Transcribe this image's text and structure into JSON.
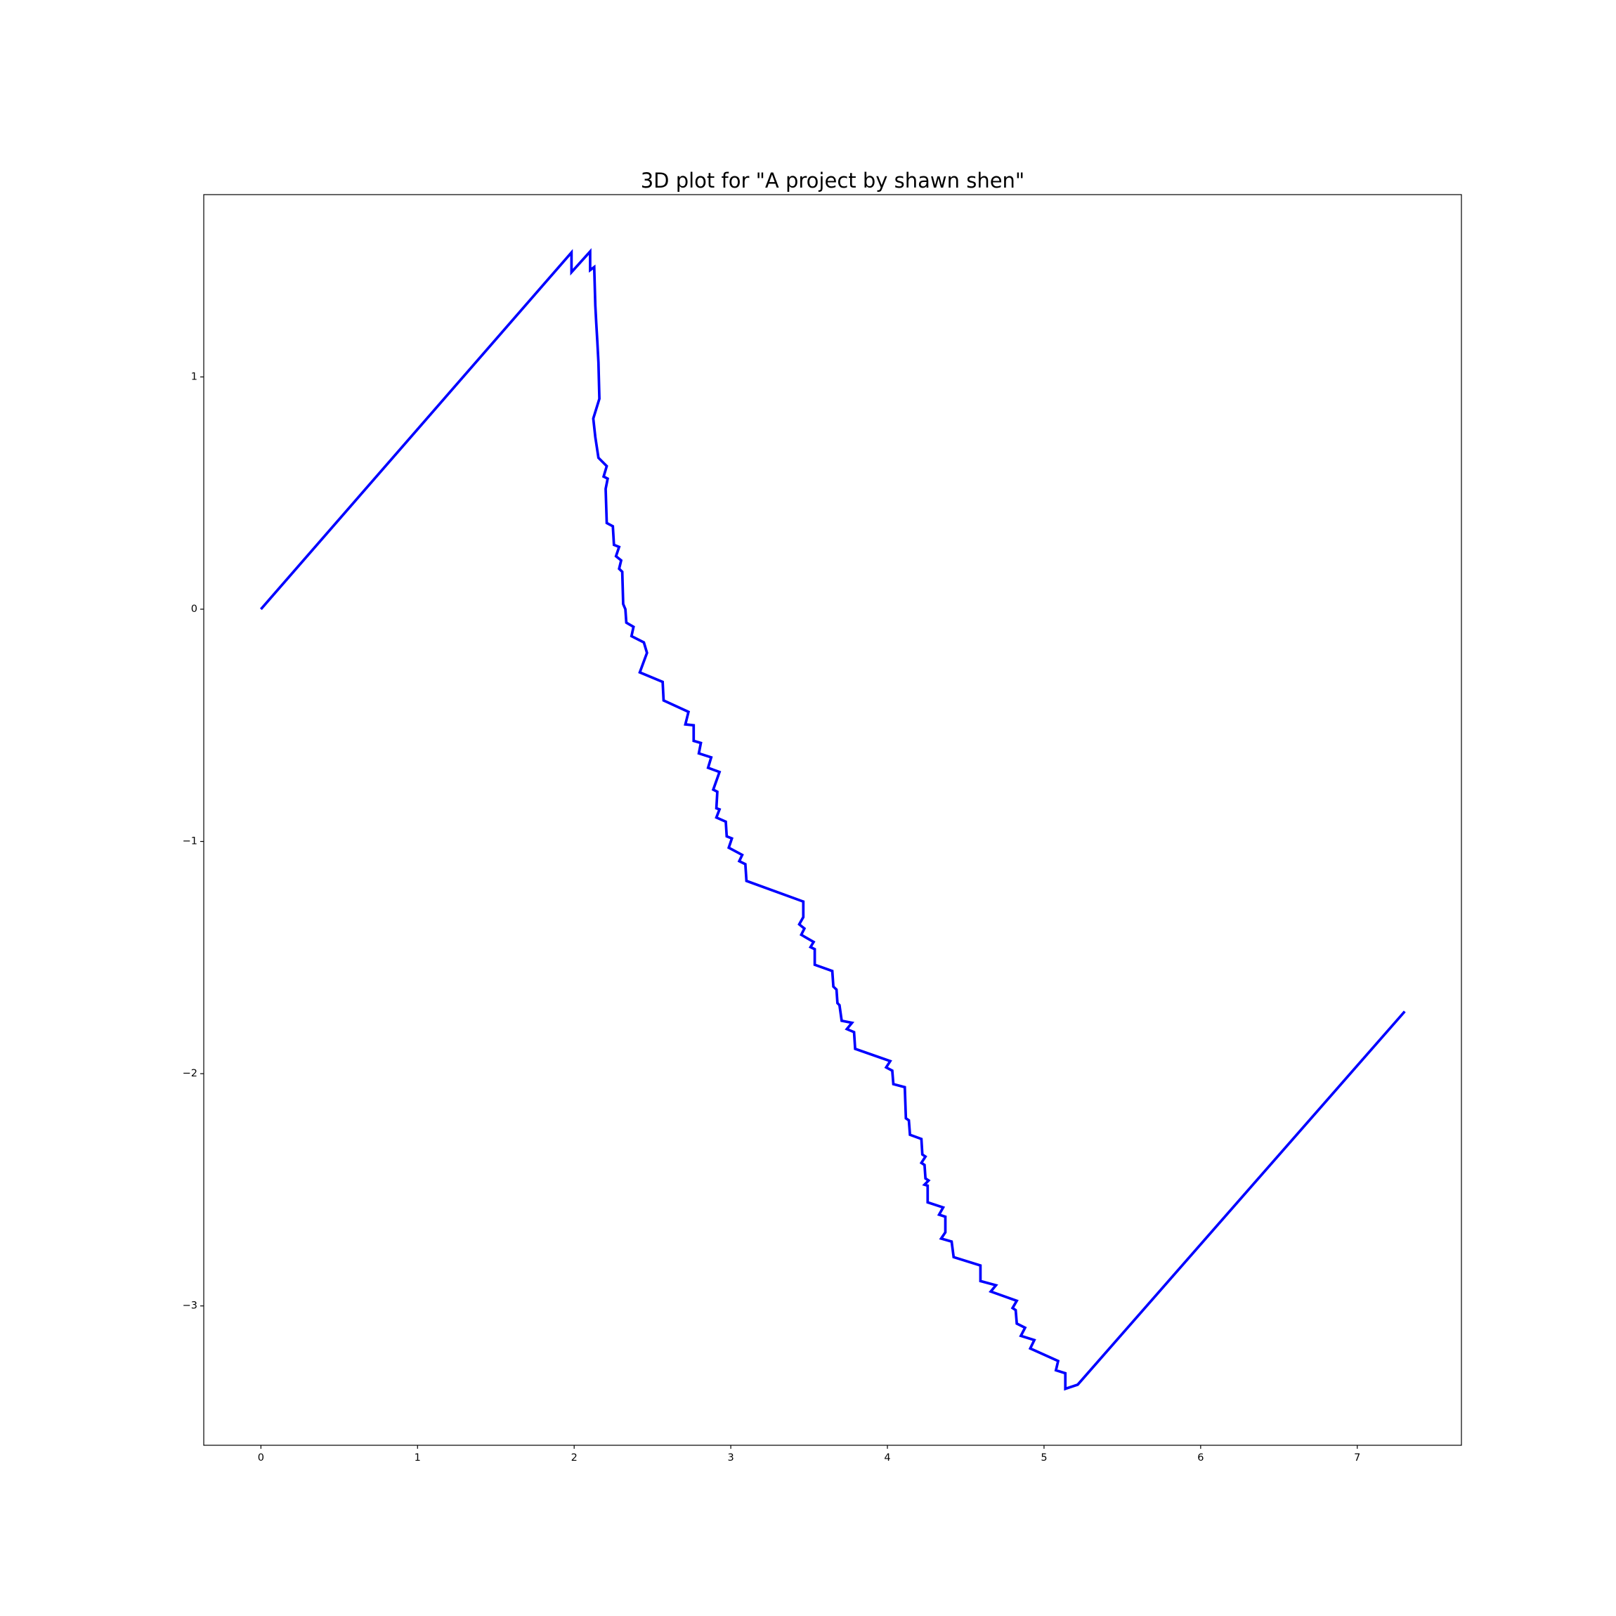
{
  "chart_data": {
    "type": "line",
    "title": "3D plot for \"A project by shawn shen\"",
    "color": "#0000ff",
    "x": [
      0,
      1.983,
      1.983,
      2.102,
      2.102,
      2.128,
      2.135,
      2.141,
      2.148,
      2.155,
      2.161,
      2.122,
      2.135,
      2.155,
      2.208,
      2.188,
      2.214,
      2.201,
      2.208,
      2.247,
      2.254,
      2.287,
      2.267,
      2.3,
      2.287,
      2.307,
      2.313,
      2.327,
      2.333,
      2.379,
      2.366,
      2.445,
      2.465,
      2.419,
      2.565,
      2.571,
      2.73,
      2.71,
      2.763,
      2.763,
      2.809,
      2.796,
      2.875,
      2.855,
      2.928,
      2.888,
      2.914,
      2.908,
      2.928,
      2.908,
      2.968,
      2.974,
      3.007,
      2.987,
      3.073,
      3.054,
      3.093,
      3.1,
      3.463,
      3.463,
      3.437,
      3.47,
      3.45,
      3.529,
      3.509,
      3.536,
      3.536,
      3.648,
      3.655,
      3.675,
      3.681,
      3.694,
      3.708,
      3.774,
      3.741,
      3.787,
      3.794,
      4.018,
      3.992,
      4.031,
      4.038,
      4.111,
      4.118,
      4.137,
      4.144,
      4.217,
      4.223,
      4.243,
      4.217,
      4.237,
      4.243,
      4.263,
      4.237,
      4.257,
      4.257,
      4.356,
      4.33,
      4.37,
      4.37,
      4.343,
      4.41,
      4.423,
      4.594,
      4.594,
      4.693,
      4.66,
      4.826,
      4.799,
      4.819,
      4.826,
      4.879,
      4.852,
      4.938,
      4.912,
      5.09,
      5.076,
      5.136,
      5.136,
      5.215,
      7.303
    ],
    "values": [
      0,
      1.536,
      1.451,
      1.54,
      1.46,
      1.473,
      1.308,
      1.232,
      1.152,
      1.063,
      0.906,
      0.821,
      0.741,
      0.652,
      0.616,
      0.571,
      0.562,
      0.518,
      0.371,
      0.357,
      0.277,
      0.268,
      0.228,
      0.21,
      0.174,
      0.161,
      0.022,
      0,
      -0.058,
      -0.076,
      -0.116,
      -0.143,
      -0.188,
      -0.272,
      -0.313,
      -0.393,
      -0.442,
      -0.496,
      -0.5,
      -0.567,
      -0.576,
      -0.621,
      -0.638,
      -0.683,
      -0.701,
      -0.777,
      -0.786,
      -0.857,
      -0.862,
      -0.897,
      -0.915,
      -0.978,
      -0.987,
      -1.027,
      -1.058,
      -1.085,
      -1.098,
      -1.17,
      -1.259,
      -1.326,
      -1.357,
      -1.375,
      -1.402,
      -1.433,
      -1.455,
      -1.464,
      -1.531,
      -1.558,
      -1.625,
      -1.638,
      -1.696,
      -1.705,
      -1.772,
      -1.781,
      -1.808,
      -1.821,
      -1.893,
      -1.946,
      -1.973,
      -1.987,
      -2.045,
      -2.058,
      -2.192,
      -2.201,
      -2.263,
      -2.281,
      -2.348,
      -2.357,
      -2.384,
      -2.393,
      -2.451,
      -2.46,
      -2.478,
      -2.482,
      -2.554,
      -2.576,
      -2.607,
      -2.616,
      -2.683,
      -2.71,
      -2.723,
      -2.79,
      -2.826,
      -2.893,
      -2.911,
      -2.938,
      -2.978,
      -3.009,
      -3.018,
      -3.076,
      -3.094,
      -3.129,
      -3.147,
      -3.183,
      -3.237,
      -3.277,
      -3.29,
      -3.357,
      -3.339,
      -1.732
    ],
    "xlim": [
      -0.365,
      7.665
    ],
    "ylim": [
      -3.6,
      1.785
    ],
    "xticks": [
      0,
      1,
      2,
      3,
      4,
      5,
      6,
      7
    ],
    "yticks": [
      {
        "value": -3,
        "label": "−3"
      },
      {
        "value": -2,
        "label": "−2"
      },
      {
        "value": -1,
        "label": "−1"
      },
      0,
      1
    ],
    "grid": false
  }
}
